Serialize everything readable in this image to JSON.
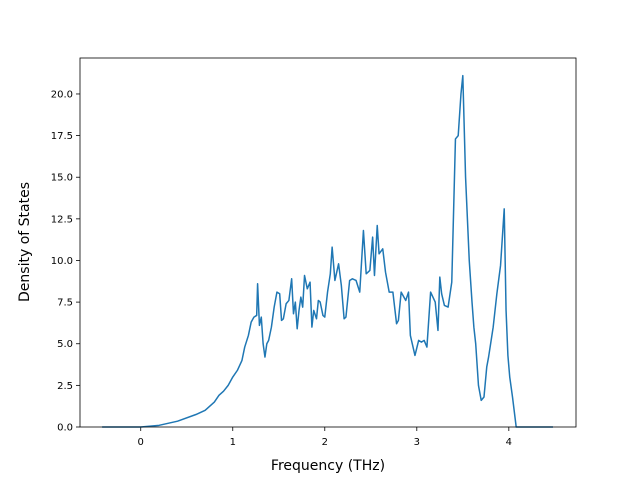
{
  "chart_data": {
    "type": "line",
    "xlabel": "Frequency (THz)",
    "ylabel": "Density of States",
    "color": "#1f77b4",
    "xlim": [
      -0.66,
      4.73
    ],
    "ylim": [
      0,
      22.16
    ],
    "xticks": [
      0,
      1,
      2,
      3,
      4
    ],
    "yticks": [
      {
        "value": 0,
        "label": "0.0"
      },
      {
        "value": 2.5,
        "label": "2.5"
      },
      {
        "value": 5,
        "label": "5.0"
      },
      {
        "value": 7.5,
        "label": "7.5"
      },
      {
        "value": 10,
        "label": "10.0"
      },
      {
        "value": 12.5,
        "label": "12.5"
      },
      {
        "value": 15,
        "label": "15.0"
      },
      {
        "value": 17.5,
        "label": "17.5"
      },
      {
        "value": 20,
        "label": "20.0"
      }
    ],
    "x": [
      -0.42,
      0,
      0.2,
      0.4,
      0.6,
      0.7,
      0.8,
      0.85,
      0.9,
      0.95,
      1.0,
      1.05,
      1.1,
      1.13,
      1.17,
      1.2,
      1.23,
      1.26,
      1.27,
      1.29,
      1.31,
      1.33,
      1.35,
      1.37,
      1.39,
      1.42,
      1.45,
      1.48,
      1.51,
      1.53,
      1.55,
      1.58,
      1.61,
      1.64,
      1.66,
      1.68,
      1.7,
      1.72,
      1.74,
      1.76,
      1.78,
      1.81,
      1.84,
      1.86,
      1.88,
      1.91,
      1.93,
      1.95,
      1.98,
      2.0,
      2.03,
      2.06,
      2.08,
      2.11,
      2.15,
      2.18,
      2.21,
      2.23,
      2.27,
      2.3,
      2.34,
      2.38,
      2.42,
      2.45,
      2.49,
      2.52,
      2.54,
      2.57,
      2.59,
      2.63,
      2.66,
      2.7,
      2.74,
      2.78,
      2.8,
      2.83,
      2.88,
      2.91,
      2.93,
      2.98,
      3.02,
      3.05,
      3.08,
      3.11,
      3.15,
      3.2,
      3.23,
      3.25,
      3.27,
      3.3,
      3.34,
      3.38,
      3.42,
      3.45,
      3.48,
      3.5,
      3.53,
      3.57,
      3.6,
      3.62,
      3.64,
      3.67,
      3.7,
      3.73,
      3.76,
      3.78,
      3.83,
      3.87,
      3.91,
      3.95,
      3.97,
      3.99,
      4.01,
      4.04,
      4.08,
      4.48
    ],
    "values": [
      0,
      0,
      0.1,
      0.35,
      0.75,
      1.0,
      1.5,
      1.9,
      2.15,
      2.5,
      3.0,
      3.4,
      4.0,
      4.8,
      5.5,
      6.3,
      6.6,
      6.7,
      8.6,
      6.1,
      6.6,
      5.0,
      4.2,
      5.0,
      5.2,
      6.0,
      7.2,
      8.1,
      8.0,
      6.4,
      6.5,
      7.4,
      7.6,
      8.9,
      6.8,
      7.5,
      5.9,
      7.0,
      7.8,
      7.2,
      9.1,
      8.3,
      8.7,
      6.0,
      7.0,
      6.5,
      7.6,
      7.5,
      6.7,
      6.6,
      8.1,
      9.2,
      10.8,
      8.8,
      9.8,
      8.5,
      6.5,
      6.6,
      8.8,
      8.9,
      8.8,
      8.1,
      11.8,
      9.2,
      9.4,
      11.4,
      9.1,
      12.1,
      10.4,
      10.7,
      9.3,
      8.1,
      8.1,
      6.2,
      6.4,
      8.1,
      7.6,
      8.1,
      5.5,
      4.3,
      5.2,
      5.1,
      5.2,
      4.8,
      8.1,
      7.5,
      5.8,
      9.0,
      8.0,
      7.3,
      7.2,
      8.7,
      17.3,
      17.5,
      20.0,
      21.1,
      15.0,
      10.0,
      7.5,
      6.0,
      5.0,
      2.5,
      1.6,
      1.8,
      3.6,
      4.2,
      6.0,
      8.0,
      9.7,
      13.1,
      7.0,
      4.3,
      3.0,
      1.8,
      0,
      0
    ]
  }
}
